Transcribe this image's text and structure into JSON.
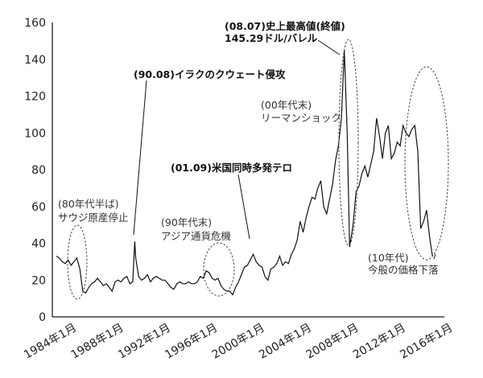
{
  "chart_data": {
    "type": "line",
    "title": "",
    "xlabel": "",
    "ylabel": "",
    "ylim": [
      0,
      160
    ],
    "yticks": [
      0,
      20,
      40,
      60,
      80,
      100,
      120,
      140,
      160
    ],
    "ytick_labels": [
      "0",
      "20",
      "40",
      "60",
      "80",
      "100",
      "120",
      "140",
      "160"
    ],
    "xticks": [
      1984,
      1988,
      1992,
      1996,
      2000,
      2004,
      2008,
      2012,
      2016
    ],
    "xtick_labels": [
      "1984年1月",
      "1988年1月",
      "1992年1月",
      "1996年1月",
      "2000年1月",
      "2004年1月",
      "2008年1月",
      "2012年1月",
      "2016年1月"
    ],
    "grid": false,
    "line_color": "#111111",
    "series": [
      {
        "x": [
          1984,
          1984.25,
          1984.5,
          1984.75,
          1985,
          1985.25,
          1985.5,
          1985.75,
          1986,
          1986.25,
          1986.5,
          1986.75,
          1987,
          1987.25,
          1987.5,
          1987.75,
          1988,
          1988.25,
          1988.5,
          1988.75,
          1989,
          1989.25,
          1989.5,
          1989.75,
          1990,
          1990.25,
          1990.5,
          1990.67,
          1990.75,
          1991,
          1991.25,
          1991.5,
          1991.75,
          1992,
          1992.25,
          1992.5,
          1992.75,
          1993,
          1993.25,
          1993.5,
          1993.75,
          1994,
          1994.25,
          1994.5,
          1994.75,
          1995,
          1995.25,
          1995.5,
          1995.75,
          1996,
          1996.25,
          1996.5,
          1996.75,
          1997,
          1997.25,
          1997.5,
          1997.75,
          1998,
          1998.25,
          1998.5,
          1998.75,
          1999,
          1999.25,
          1999.5,
          1999.75,
          2000,
          2000.25,
          2000.5,
          2000.75,
          2001,
          2001.25,
          2001.5,
          2001.75,
          2002,
          2002.25,
          2002.5,
          2002.75,
          2003,
          2003.25,
          2003.5,
          2003.75,
          2004,
          2004.25,
          2004.5,
          2004.75,
          2005,
          2005.25,
          2005.5,
          2005.75,
          2006,
          2006.25,
          2006.5,
          2006.75,
          2007,
          2007.25,
          2007.5,
          2007.75,
          2008,
          2008.25,
          2008.5,
          2008.75,
          2008.95,
          2009.25,
          2009.5,
          2009.75,
          2010,
          2010.25,
          2010.5,
          2010.75,
          2011,
          2011.25,
          2011.5,
          2011.75,
          2012,
          2012.25,
          2012.5,
          2012.75,
          2013,
          2013.25,
          2013.5,
          2013.75,
          2014,
          2014.25,
          2014.5,
          2014.75,
          2015,
          2015.25,
          2015.5,
          2015.75,
          2016
        ],
        "values": [
          33,
          32,
          30,
          29,
          31,
          28,
          30,
          32,
          26,
          14,
          13,
          16,
          18,
          19,
          21,
          19,
          17,
          18,
          16,
          14,
          19,
          20,
          19,
          21,
          22,
          18,
          19,
          41,
          32,
          22,
          20,
          21,
          23,
          19,
          21,
          22,
          21,
          20,
          20,
          18,
          16,
          15,
          18,
          19,
          18,
          18,
          19,
          18,
          18,
          19,
          22,
          21,
          25,
          24,
          21,
          20,
          21,
          17,
          15,
          14,
          14,
          12,
          16,
          19,
          23,
          27,
          28,
          31,
          34,
          30,
          28,
          27,
          22,
          20,
          26,
          27,
          29,
          33,
          28,
          30,
          29,
          34,
          37,
          42,
          52,
          46,
          54,
          60,
          65,
          64,
          70,
          74,
          60,
          56,
          64,
          72,
          85,
          93,
          108,
          145,
          100,
          38,
          50,
          68,
          71,
          78,
          82,
          76,
          83,
          90,
          108,
          98,
          86,
          100,
          104,
          86,
          89,
          95,
          93,
          104,
          100,
          98,
          102,
          104,
          90,
          48,
          52,
          58,
          44,
          33
        ]
      }
    ]
  },
  "annotations": {
    "saudi_1": "(80年代半ば)",
    "saudi_2": "サウジ原産停止",
    "iraq": "(90.08)イラクのクウェート侵攻",
    "asia_1": "(90年代末)",
    "asia_2": "アジア通貨危機",
    "terror": "(01.09)米国同時多発テロ",
    "peak_1": "(08.07)史上最高値(終値)",
    "peak_2": "145.29ドル/バレル",
    "lehman_1": "(00年代末)",
    "lehman_2": "リーマンショック",
    "recent_1": "(10年代)",
    "recent_2": "今般の価格下落"
  }
}
